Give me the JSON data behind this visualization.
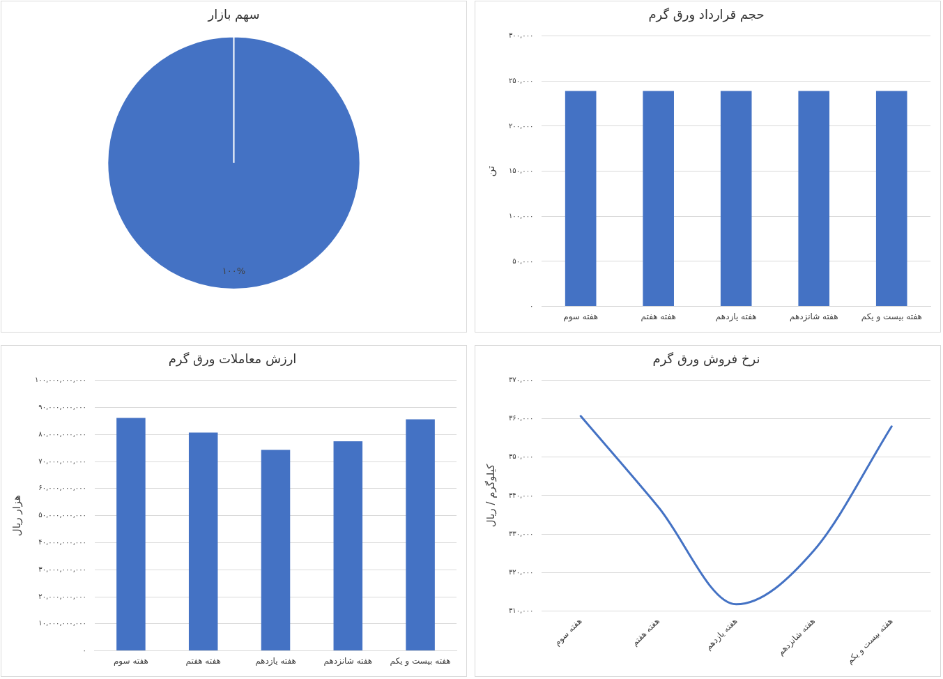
{
  "chart_data": [
    {
      "type": "pie",
      "title": "سهم بازار",
      "categories": [
        null
      ],
      "values": [
        100
      ],
      "colors": [
        "#4472c4"
      ],
      "value_labels": [
        "۱۰۰%"
      ]
    },
    {
      "type": "bar",
      "title": "حجم قرارداد ورق گرم",
      "ylabel": "تن",
      "categories": [
        "هفته سوم",
        "هفته هفتم",
        "هفته یازدهم",
        "هفته شانزدهم",
        "هفته بیست و یکم"
      ],
      "values": [
        239000,
        239000,
        239000,
        239000,
        239000
      ],
      "color": "#4472c4",
      "ylim": [
        0,
        300000
      ],
      "yticks": [
        {
          "value": 0,
          "label": "۰"
        },
        {
          "value": 50000,
          "label": "۵۰,۰۰۰"
        },
        {
          "value": 100000,
          "label": "۱۰۰,۰۰۰"
        },
        {
          "value": 150000,
          "label": "۱۵۰,۰۰۰"
        },
        {
          "value": 200000,
          "label": "۲۰۰,۰۰۰"
        },
        {
          "value": 250000,
          "label": "۲۵۰,۰۰۰"
        },
        {
          "value": 300000,
          "label": "۳۰۰,۰۰۰"
        }
      ],
      "grid": "y"
    },
    {
      "type": "bar",
      "title": "ارزش معاملات ورق گرم",
      "ylabel": "هزار ریال",
      "categories": [
        "هفته سوم",
        "هفته هفتم",
        "هفته یازدهم",
        "هفته شانزدهم",
        "هفته بیست و یکم"
      ],
      "values": [
        86100000000,
        80700000000,
        74300000000,
        77500000000,
        85600000000
      ],
      "color": "#4472c4",
      "ylim": [
        0,
        100000000000
      ],
      "yticks": [
        {
          "value": 0,
          "label": "۰"
        },
        {
          "value": 10000000000,
          "label": "۱۰,۰۰۰,۰۰۰,۰۰۰"
        },
        {
          "value": 20000000000,
          "label": "۲۰,۰۰۰,۰۰۰,۰۰۰"
        },
        {
          "value": 30000000000,
          "label": "۳۰,۰۰۰,۰۰۰,۰۰۰"
        },
        {
          "value": 40000000000,
          "label": "۴۰,۰۰۰,۰۰۰,۰۰۰"
        },
        {
          "value": 50000000000,
          "label": "۵۰,۰۰۰,۰۰۰,۰۰۰"
        },
        {
          "value": 60000000000,
          "label": "۶۰,۰۰۰,۰۰۰,۰۰۰"
        },
        {
          "value": 70000000000,
          "label": "۷۰,۰۰۰,۰۰۰,۰۰۰"
        },
        {
          "value": 80000000000,
          "label": "۸۰,۰۰۰,۰۰۰,۰۰۰"
        },
        {
          "value": 90000000000,
          "label": "۹۰,۰۰۰,۰۰۰,۰۰۰"
        },
        {
          "value": 100000000000,
          "label": "۱۰۰,۰۰۰,۰۰۰,۰۰۰"
        }
      ],
      "grid": "y"
    },
    {
      "type": "line",
      "title": "نرخ فروش ورق گرم",
      "ylabel": "کیلوگرم / ریال",
      "categories": [
        "هفته سوم",
        "هفته هفتم",
        "هفته یازدهم",
        "هفته شانزدهم",
        "هفته بیست و یکم"
      ],
      "values": [
        360700,
        337000,
        311700,
        325700,
        358000
      ],
      "color": "#4472c4",
      "marker": "none",
      "ylim": [
        310000,
        370000
      ],
      "yticks": [
        {
          "value": 310000,
          "label": "۳۱۰,۰۰۰"
        },
        {
          "value": 320000,
          "label": "۳۲۰,۰۰۰"
        },
        {
          "value": 330000,
          "label": "۳۳۰,۰۰۰"
        },
        {
          "value": 340000,
          "label": "۳۴۰,۰۰۰"
        },
        {
          "value": 350000,
          "label": "۳۵۰,۰۰۰"
        },
        {
          "value": 360000,
          "label": "۳۶۰,۰۰۰"
        },
        {
          "value": 370000,
          "label": "۳۷۰,۰۰۰"
        }
      ],
      "grid": "y"
    }
  ]
}
